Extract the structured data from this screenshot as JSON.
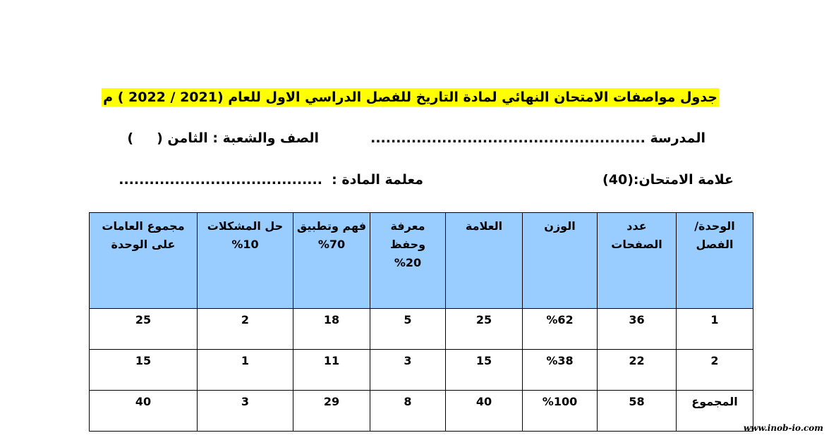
{
  "header": {
    "title": "جدول مواصفات الامتحان النهائي لمادة التاريخ للفصل الدراسي الاول للعام (2021 / 2022 ) م"
  },
  "info": {
    "school": "المدرسة ......................................................",
    "class": "الصف والشعبة : الثامن (     )",
    "exam_mark": "علامة الامتحان:(40)",
    "teacher": "معلمة المادة :  ........................................"
  },
  "table": {
    "headers": [
      [
        "الوحدة/",
        "الفصل"
      ],
      [
        "عدد",
        "الصفحات"
      ],
      [
        "الوزن"
      ],
      [
        "العلامة"
      ],
      [
        "معرفة",
        "وحفظ",
        "%20"
      ],
      [
        "فهم وتطبيق",
        "%70"
      ],
      [
        "حل المشكلات",
        "%10"
      ],
      [
        "مجموع العامات",
        "على الوحدة"
      ]
    ],
    "rows": [
      [
        1,
        36,
        "%62",
        25,
        5,
        18,
        2,
        25
      ],
      [
        2,
        22,
        "%38",
        15,
        3,
        11,
        1,
        15
      ],
      [
        "المجموع",
        58,
        "%100",
        40,
        8,
        29,
        3,
        40
      ]
    ]
  },
  "footer": {
    "watermark": "www.inob-io.com"
  }
}
